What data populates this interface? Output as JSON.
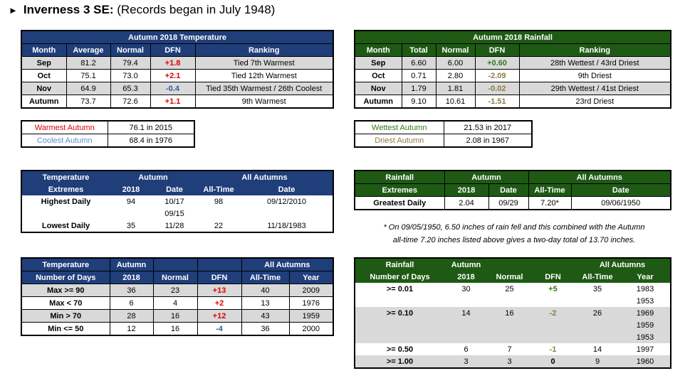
{
  "title": {
    "arrow": "►",
    "station": "Inverness 3 SE:",
    "note": "(Records began in July 1948)"
  },
  "temp_table": {
    "caption": "Autumn 2018 Temperature",
    "headers": [
      "Month",
      "Average",
      "Normal",
      "DFN",
      "Ranking"
    ],
    "rows": [
      [
        "Sep",
        "81.2",
        "79.4",
        "+1.8",
        "Tied 7th Warmest"
      ],
      [
        "Oct",
        "75.1",
        "73.0",
        "+2.1",
        "Tied 12th Warmest"
      ],
      [
        "Nov",
        "64.9",
        "65.3",
        "-0.4",
        "Tied 35th Warmest / 26th Coolest"
      ],
      [
        "Autumn",
        "73.7",
        "72.6",
        "+1.1",
        "9th Warmest"
      ]
    ]
  },
  "rain_table": {
    "caption": "Autumn 2018 Rainfall",
    "headers": [
      "Month",
      "Total",
      "Normal",
      "DFN",
      "Ranking"
    ],
    "rows": [
      [
        "Sep",
        "6.60",
        "6.00",
        "+0.60",
        "28th Wettest / 43rd Driest"
      ],
      [
        "Oct",
        "0.71",
        "2.80",
        "-2.09",
        "9th Driest"
      ],
      [
        "Nov",
        "1.79",
        "1.81",
        "-0.02",
        "29th Wettest / 41st Driest"
      ],
      [
        "Autumn",
        "9.10",
        "10.61",
        "-1.51",
        "23rd Driest"
      ]
    ]
  },
  "temp_records": {
    "warmest_label": "Warmest Autumn",
    "warmest_value": "76.1 in 2015",
    "coolest_label": "Coolest Autumn",
    "coolest_value": "68.4 in 1976"
  },
  "rain_records": {
    "wettest_label": "Wettest Autumn",
    "wettest_value": "21.53 in 2017",
    "driest_label": "Driest Autumn",
    "driest_value": "2.08 in 1967"
  },
  "temp_extremes": {
    "h1": "Temperature",
    "h2": "Extremes",
    "autumn": "Autumn",
    "all": "All Autumns",
    "c2018": "2018",
    "date": "Date",
    "alltime": "All-Time",
    "date2": "Date",
    "rows": [
      {
        "label": "Highest Daily",
        "v2018": "94",
        "date": "10/17",
        "date_extra": "09/15",
        "alltime": "98",
        "alldate": "09/12/2010"
      },
      {
        "label": "Lowest Daily",
        "v2018": "35",
        "date": "11/28",
        "alltime": "22",
        "alldate": "11/18/1983"
      }
    ]
  },
  "rain_extremes": {
    "h1": "Rainfall",
    "h2": "Extremes",
    "autumn": "Autumn",
    "all": "All Autumns",
    "c2018": "2018",
    "date": "Date",
    "alltime": "All-Time",
    "date2": "Date",
    "row": {
      "label": "Greatest Daily",
      "v2018": "2.04",
      "date": "09/29",
      "alltime": "7.20*",
      "alldate": "09/06/1950"
    }
  },
  "footnote": {
    "line1": "* On 09/05/1950, 6.50 inches of rain fell and this combined with the Autumn",
    "line2": "all-time 7.20 inches listed above gives a two-day total of 13.70 inches."
  },
  "temp_days": {
    "h1": "Temperature",
    "h2": "Number of Days",
    "autumn": "Autumn",
    "c2018": "2018",
    "normal": "Normal",
    "dfn": "DFN",
    "all": "All Autumns",
    "alltime": "All-Time",
    "year": "Year",
    "rows": [
      [
        "Max >= 90",
        "36",
        "23",
        "+13",
        "40",
        "2009"
      ],
      [
        "Max < 70",
        "6",
        "4",
        "+2",
        "13",
        "1976"
      ],
      [
        "Min > 70",
        "28",
        "16",
        "+12",
        "43",
        "1959"
      ],
      [
        "Min <= 50",
        "12",
        "16",
        "-4",
        "36",
        "2000"
      ]
    ]
  },
  "rain_days": {
    "h1": "Rainfall",
    "h2": "Number of Days",
    "autumn": "Autumn",
    "c2018": "2018",
    "normal": "Normal",
    "dfn": "DFN",
    "all": "All Autumns",
    "alltime": "All-Time",
    "year": "Year",
    "rows": [
      {
        "label": ">= 0.01",
        "v2018": "30",
        "normal": "25",
        "dfn": "+5",
        "alltime": "35",
        "years": [
          "1983",
          "1953"
        ]
      },
      {
        "label": ">= 0.10",
        "v2018": "14",
        "normal": "16",
        "dfn": "-2",
        "alltime": "26",
        "years": [
          "1969",
          "1959",
          "1953"
        ]
      },
      {
        "label": ">= 0.50",
        "v2018": "6",
        "normal": "7",
        "dfn": "-1",
        "alltime": "14",
        "years": [
          "1997"
        ]
      },
      {
        "label": ">= 1.00",
        "v2018": "3",
        "normal": "3",
        "dfn": "0",
        "alltime": "9",
        "years": [
          "1960"
        ]
      }
    ]
  },
  "colors": {
    "temp_header": "#1f3e7a",
    "rain_header": "#1e5a14",
    "gray_row": "#d9d9d9",
    "positive_temp": "#e00000",
    "negative_temp": "#3656a6",
    "positive_rain": "#2e7d16",
    "negative_rain": "#8c7a43"
  }
}
